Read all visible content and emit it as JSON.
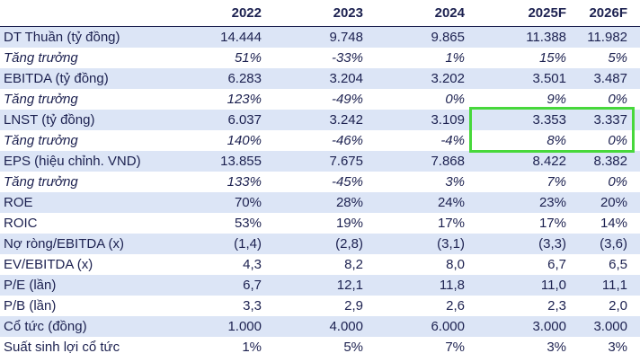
{
  "table": {
    "columns": [
      "2022",
      "2023",
      "2024",
      "2025F",
      "2026F"
    ],
    "rows": [
      {
        "label": "DT Thuần (tỷ đồng)",
        "values": [
          "14.444",
          "9.748",
          "9.865",
          "11.388",
          "11.982"
        ]
      },
      {
        "label": "Tăng trưởng",
        "values": [
          "51%",
          "-33%",
          "1%",
          "15%",
          "5%"
        ],
        "italic": true
      },
      {
        "label": "EBITDA (tỷ đồng)",
        "values": [
          "6.283",
          "3.204",
          "3.202",
          "3.501",
          "3.487"
        ]
      },
      {
        "label": "Tăng trưởng",
        "values": [
          "123%",
          "-49%",
          "0%",
          "9%",
          "0%"
        ],
        "italic": true
      },
      {
        "label": "LNST (tỷ đồng)",
        "values": [
          "6.037",
          "3.242",
          "3.109",
          "3.353",
          "3.337"
        ]
      },
      {
        "label": "Tăng trưởng",
        "values": [
          "140%",
          "-46%",
          "-4%",
          "8%",
          "0%"
        ],
        "italic": true
      },
      {
        "label": "EPS (hiệu chỉnh. VND)",
        "values": [
          "13.855",
          "7.675",
          "7.868",
          "8.422",
          "8.382"
        ]
      },
      {
        "label": "Tăng trưởng",
        "values": [
          "133%",
          "-45%",
          "3%",
          "7%",
          "0%"
        ],
        "italic": true
      },
      {
        "label": "ROE",
        "values": [
          "70%",
          "28%",
          "24%",
          "23%",
          "20%"
        ]
      },
      {
        "label": "ROIC",
        "values": [
          "53%",
          "19%",
          "17%",
          "17%",
          "14%"
        ]
      },
      {
        "label": "Nợ ròng/EBITDA (x)",
        "values": [
          "(1,4)",
          "(2,8)",
          "(3,1)",
          "(3,3)",
          "(3,6)"
        ]
      },
      {
        "label": "EV/EBITDA (x)",
        "values": [
          "4,3",
          "8,2",
          "8,0",
          "6,7",
          "6,5"
        ]
      },
      {
        "label": "P/E (lần)",
        "values": [
          "6,7",
          "12,1",
          "11,8",
          "11,0",
          "11,1"
        ]
      },
      {
        "label": "P/B (lần)",
        "values": [
          "3,3",
          "2,9",
          "2,6",
          "2,3",
          "2,0"
        ]
      },
      {
        "label": "Cổ tức (đồng)",
        "values": [
          "1.000",
          "4.000",
          "6.000",
          "3.000",
          "3.000"
        ]
      },
      {
        "label": "Suất sinh lợi cổ tức",
        "values": [
          "1%",
          "5%",
          "7%",
          "3%",
          "3%"
        ]
      }
    ]
  }
}
